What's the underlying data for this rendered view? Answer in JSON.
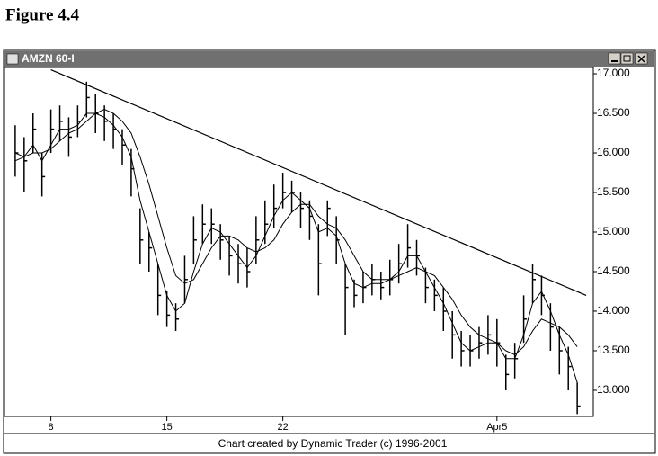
{
  "chart_data": {
    "type": "ohlc",
    "figure_label": "Figure 4.4",
    "title": "AMZN 60-I",
    "footer": "Chart created by Dynamic Trader (c) 1996-2001",
    "color": "#000000",
    "high": [
      16.35,
      16.2,
      16.5,
      16.0,
      16.55,
      16.6,
      16.45,
      16.6,
      16.9,
      16.75,
      16.6,
      16.5,
      16.3,
      16.05,
      15.3,
      15.0,
      14.6,
      14.25,
      14.1,
      14.7,
      15.2,
      15.35,
      15.3,
      15.1,
      14.95,
      14.85,
      14.8,
      15.2,
      15.4,
      15.6,
      15.75,
      15.65,
      15.5,
      15.4,
      15.1,
      15.4,
      15.2,
      14.6,
      14.4,
      14.5,
      14.6,
      14.5,
      14.65,
      14.85,
      15.1,
      14.9,
      14.55,
      14.4,
      14.3,
      14.0,
      13.75,
      13.7,
      13.8,
      13.95,
      13.9,
      13.45,
      13.6,
      14.2,
      14.6,
      14.45,
      14.1,
      13.8,
      13.55,
      13.1
    ],
    "low": [
      15.7,
      15.5,
      16.0,
      15.45,
      16.0,
      16.15,
      15.95,
      16.2,
      16.45,
      16.25,
      16.15,
      16.05,
      15.85,
      15.45,
      14.6,
      14.5,
      13.95,
      13.8,
      13.75,
      14.1,
      14.6,
      14.85,
      14.85,
      14.65,
      14.45,
      14.35,
      14.3,
      14.6,
      14.85,
      15.05,
      15.3,
      15.25,
      15.05,
      14.9,
      14.2,
      14.95,
      14.6,
      13.7,
      14.05,
      14.1,
      14.2,
      14.15,
      14.2,
      14.35,
      14.55,
      14.45,
      14.1,
      14.0,
      13.75,
      13.4,
      13.3,
      13.3,
      13.4,
      13.45,
      13.3,
      13.0,
      13.15,
      13.6,
      14.1,
      13.95,
      13.5,
      13.2,
      13.0,
      12.7
    ],
    "close": [
      16.0,
      15.9,
      16.3,
      15.7,
      16.3,
      16.4,
      16.2,
      16.4,
      16.7,
      16.5,
      16.4,
      16.3,
      16.1,
      15.8,
      14.9,
      14.8,
      14.2,
      13.95,
      13.9,
      14.4,
      14.9,
      15.1,
      15.1,
      14.9,
      14.7,
      14.6,
      14.5,
      14.9,
      15.1,
      15.3,
      15.5,
      15.5,
      15.3,
      15.2,
      14.6,
      15.3,
      14.9,
      14.3,
      14.2,
      14.3,
      14.4,
      14.3,
      14.4,
      14.6,
      14.8,
      14.7,
      14.3,
      14.2,
      14.0,
      13.7,
      13.5,
      13.5,
      13.6,
      13.7,
      13.6,
      13.2,
      13.4,
      13.9,
      14.4,
      14.2,
      13.8,
      13.5,
      13.3,
      12.8
    ],
    "lines": [
      {
        "color": "#000000",
        "values": [
          16.0,
          15.95,
          16.1,
          15.9,
          16.1,
          16.3,
          16.3,
          16.35,
          16.5,
          16.5,
          16.45,
          16.35,
          16.2,
          15.95,
          15.4,
          15.0,
          14.6,
          14.2,
          14.0,
          14.1,
          14.5,
          14.85,
          15.05,
          15.0,
          14.85,
          14.7,
          14.55,
          14.7,
          14.95,
          15.2,
          15.4,
          15.5,
          15.4,
          15.3,
          15.0,
          15.05,
          14.95,
          14.6,
          14.35,
          14.3,
          14.35,
          14.35,
          14.4,
          14.5,
          14.7,
          14.7,
          14.5,
          14.3,
          14.1,
          13.85,
          13.6,
          13.5,
          13.55,
          13.6,
          13.6,
          13.4,
          13.4,
          13.7,
          14.1,
          14.25,
          14.0,
          13.7,
          13.45,
          13.1
        ]
      },
      {
        "color": "#000000",
        "values": [
          15.9,
          15.95,
          16.0,
          16.0,
          16.05,
          16.15,
          16.25,
          16.3,
          16.4,
          16.5,
          16.55,
          16.5,
          16.4,
          16.25,
          15.95,
          15.6,
          15.2,
          14.8,
          14.45,
          14.35,
          14.4,
          14.6,
          14.8,
          14.95,
          14.95,
          14.9,
          14.8,
          14.75,
          14.8,
          14.9,
          15.1,
          15.25,
          15.35,
          15.35,
          15.2,
          15.1,
          15.05,
          14.9,
          14.7,
          14.5,
          14.4,
          14.4,
          14.4,
          14.45,
          14.5,
          14.55,
          14.5,
          14.45,
          14.3,
          14.15,
          13.95,
          13.8,
          13.7,
          13.65,
          13.6,
          13.5,
          13.45,
          13.55,
          13.75,
          13.9,
          13.85,
          13.8,
          13.7,
          13.55
        ]
      }
    ],
    "trendline": {
      "x": [
        4,
        64
      ],
      "y": [
        17.05,
        14.2
      ]
    },
    "xlim": [
      -1.2,
      64.8
    ],
    "xticks": [
      {
        "value": 4,
        "label": "8"
      },
      {
        "value": 17,
        "label": "15"
      },
      {
        "value": 30,
        "label": "22"
      },
      {
        "value": 54,
        "label": "Apr5"
      }
    ],
    "ylim": [
      12.67,
      17.08
    ],
    "yticks": [
      {
        "value": 13,
        "label": "13.000"
      },
      {
        "value": 13.5,
        "label": "13.500"
      },
      {
        "value": 14,
        "label": "14.000"
      },
      {
        "value": 14.5,
        "label": "14.500"
      },
      {
        "value": 15,
        "label": "15.000"
      },
      {
        "value": 15.5,
        "label": "15.500"
      },
      {
        "value": 16,
        "label": "16.000"
      },
      {
        "value": 16.5,
        "label": "16.500"
      },
      {
        "value": 17,
        "label": "17.000"
      }
    ],
    "grid": false
  }
}
